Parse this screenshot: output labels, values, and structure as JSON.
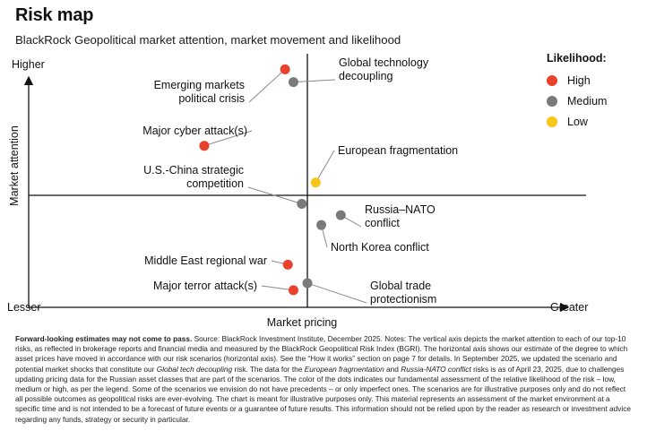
{
  "header": {
    "title": "Risk map",
    "subtitle": "BlackRock Geopolitical market attention, market movement and likelihood"
  },
  "legend": {
    "title": "Likelihood:",
    "items": [
      {
        "label": "High",
        "color": "#e8412c"
      },
      {
        "label": "Medium",
        "color": "#7a7a7a"
      },
      {
        "label": "Low",
        "color": "#f5c518"
      }
    ]
  },
  "chart_data": {
    "type": "scatter",
    "title": "Risk map",
    "subtitle": "BlackRock Geopolitical market attention, market movement and likelihood",
    "xlabel": "Market pricing",
    "ylabel": "Market attention",
    "x_low_label": "Lesser",
    "x_high_label": "Greater",
    "y_high_label": "Higher",
    "xlim": [
      -1,
      1
    ],
    "ylim": [
      -1,
      1
    ],
    "colors": {
      "high": "#e8412c",
      "medium": "#7a7a7a",
      "low": "#f5c518"
    },
    "points": [
      {
        "name": "Global technology decoupling",
        "lines": [
          "Global technology",
          "decoupling"
        ],
        "x": -0.05,
        "y": 0.8,
        "likelihood": "medium"
      },
      {
        "name": "Emerging markets political crisis",
        "lines": [
          "Emerging markets",
          "political crisis"
        ],
        "x": -0.08,
        "y": 0.89,
        "likelihood": "high"
      },
      {
        "name": "Major cyber attack(s)",
        "lines": [
          "Major cyber attack(s)"
        ],
        "x": -0.37,
        "y": 0.35,
        "likelihood": "high"
      },
      {
        "name": "European fragmentation",
        "lines": [
          "European fragmentation"
        ],
        "x": 0.03,
        "y": 0.09,
        "likelihood": "low"
      },
      {
        "name": "U.S.-China strategic competition",
        "lines": [
          "U.S.-China strategic",
          "competition"
        ],
        "x": -0.02,
        "y": -0.06,
        "likelihood": "medium"
      },
      {
        "name": "Russia-NATO conflict",
        "lines": [
          "Russia–NATO",
          "conflict"
        ],
        "x": 0.12,
        "y": -0.14,
        "likelihood": "medium"
      },
      {
        "name": "North Korea conflict",
        "lines": [
          "North Korea conflict"
        ],
        "x": 0.05,
        "y": -0.21,
        "likelihood": "medium"
      },
      {
        "name": "Middle East regional war",
        "lines": [
          "Middle East regional war"
        ],
        "x": -0.07,
        "y": -0.49,
        "likelihood": "high"
      },
      {
        "name": "Global trade protectionism",
        "lines": [
          "Global trade",
          "protectionism"
        ],
        "x": 0.0,
        "y": -0.62,
        "likelihood": "medium"
      },
      {
        "name": "Major terror attack(s)",
        "lines": [
          "Major terror attack(s)"
        ],
        "x": -0.05,
        "y": -0.67,
        "likelihood": "high"
      }
    ]
  },
  "footnote": {
    "lead": "Forward-looking estimates may not come to pass.",
    "p1": " Source: BlackRock Investment Institute, December 2025. Notes: The vertical axis depicts the market attention to each of our top-10 risks, as reflected in brokerage reports and financial media and measured by the BlackRock Geopolitical Risk Index (BGRI). The horizontal axis shows our estimate of the degree to which asset prices have moved in accordance with our risk scenarios (horizontal axis). See the “How it works” section on page 7 for details. In September 2025, we updated the scenario and potential market shocks that constitute our ",
    "it1": "Global tech decoupling",
    "p2": " risk. The data for the ",
    "it2": "European fragmentation",
    "p3": " and ",
    "it3": "Russia-NATO conflict",
    "p4": " risks is as of April 23, 2025, due to challenges updating pricing data for the Russian asset classes that are part of the scenarios. The color of the dots indicates our fundamental assessment of the relative likelihood of the risk – low, medium or high, as per the legend. Some of the scenarios we envision do not have precedents – or only imperfect ones. The scenarios are for illustrative purposes only and do not reflect all possible outcomes as geopolitical risks are ever-evolving. The chart is meant for illustrative purposes only. This material represents an assessment of the market environment at a specific time and is not intended to be a forecast of future events or a guarantee of future results. This information should not be relied upon by the reader as research or investment advice regarding any funds, strategy or security in particular."
  }
}
